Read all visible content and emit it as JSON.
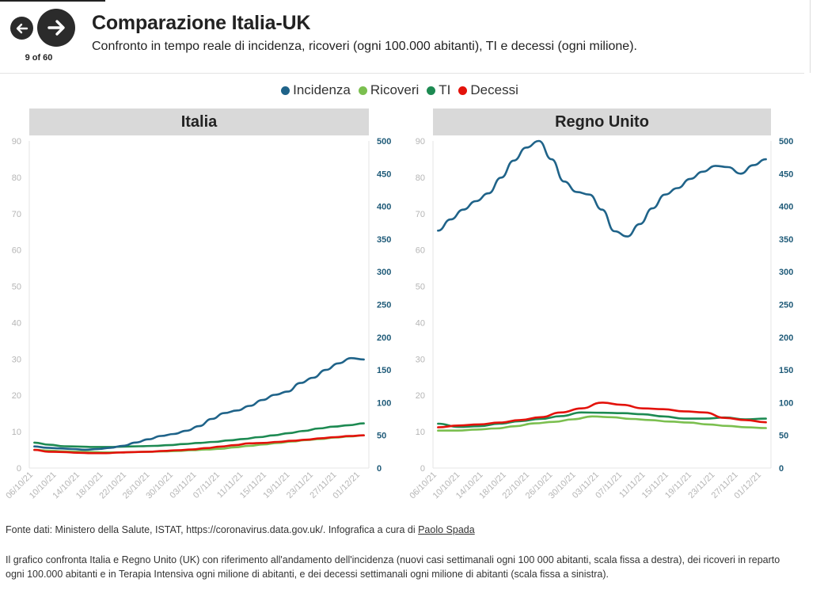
{
  "nav": {
    "counter": "9 of 60",
    "prev_icon": "arrow-left-icon",
    "next_icon": "arrow-right-icon"
  },
  "header": {
    "title": "Comparazione Italia-UK",
    "subtitle": "Confronto in tempo reale di incidenza, ricoveri (ogni 100.000 abitanti), TI e decessi (ogni milione)."
  },
  "legend": [
    {
      "label": "Incidenza",
      "color": "#1f6389"
    },
    {
      "label": "Ricoveri",
      "color": "#7bbf4f"
    },
    {
      "label": "TI",
      "color": "#1d8a52"
    },
    {
      "label": "Decessi",
      "color": "#e3120b"
    }
  ],
  "footer": {
    "source_prefix": "Fonte dati: Ministero della Salute, ISTAT, https://coronavirus.data.gov.uk/. Infografica a cura di ",
    "author": "Paolo Spada",
    "note": "Il grafico confronta Italia e Regno Unito (UK) con riferimento all'andamento dell'incidenza (nuovi casi settimanali ogni 100 000 abitanti, scala fissa a destra), dei ricoveri in reparto ogni 100.000 abitanti e in Terapia Intensiva ogni milione di abitanti, e dei decessi settimanali ogni milione di abitanti (scala fissa a sinistra)."
  },
  "chart_data": [
    {
      "type": "line",
      "title": "Italia",
      "left_axis": {
        "ticks": [
          0,
          10,
          20,
          30,
          40,
          50,
          60,
          70,
          80,
          90
        ],
        "ylim": [
          0,
          90
        ]
      },
      "right_axis": {
        "ticks": [
          0,
          50,
          100,
          150,
          200,
          250,
          300,
          350,
          400,
          450,
          500
        ],
        "ylim": [
          0,
          500
        ]
      },
      "x_tick_labels": [
        "06/10/21",
        "10/10/21",
        "14/10/21",
        "18/10/21",
        "22/10/21",
        "26/10/21",
        "30/10/21",
        "03/11/21",
        "07/11/21",
        "11/11/21",
        "15/11/21",
        "19/11/21",
        "23/11/21",
        "27/11/21",
        "01/12/21"
      ],
      "series": [
        {
          "name": "Incidenza",
          "axis": "right",
          "values": [
            33,
            31,
            30,
            29,
            28,
            29,
            31,
            34,
            39,
            44,
            49,
            52,
            57,
            64,
            75,
            84,
            88,
            95,
            104,
            112,
            117,
            130,
            138,
            150,
            160,
            168,
            166
          ]
        },
        {
          "name": "Ricoveri",
          "axis": "left",
          "values": [
            5.0,
            4.8,
            4.6,
            4.5,
            4.4,
            4.3,
            4.3,
            4.4,
            4.5,
            4.6,
            4.7,
            4.9,
            5.1,
            5.3,
            5.7,
            6.1,
            6.5,
            6.9,
            7.3,
            7.7,
            8.0,
            8.4,
            8.7,
            9.0
          ]
        },
        {
          "name": "TI",
          "axis": "left",
          "values": [
            7.0,
            6.4,
            6.0,
            5.9,
            5.8,
            5.8,
            5.9,
            6.0,
            6.1,
            6.3,
            6.6,
            6.9,
            7.2,
            7.6,
            8.0,
            8.5,
            9.0,
            9.6,
            10.2,
            10.9,
            11.4,
            11.8,
            12.3
          ]
        },
        {
          "name": "Decessi",
          "axis": "left",
          "values": [
            5.0,
            4.5,
            4.4,
            4.2,
            4.1,
            4.1,
            4.3,
            4.4,
            4.5,
            4.7,
            4.9,
            5.1,
            5.5,
            5.9,
            6.3,
            6.8,
            6.9,
            7.2,
            7.5,
            7.8,
            8.2,
            8.5,
            8.8,
            9.0
          ]
        }
      ]
    },
    {
      "type": "line",
      "title": "Regno Unito",
      "left_axis": {
        "ticks": [
          0,
          10,
          20,
          30,
          40,
          50,
          60,
          70,
          80,
          90
        ],
        "ylim": [
          0,
          90
        ]
      },
      "right_axis": {
        "ticks": [
          0,
          50,
          100,
          150,
          200,
          250,
          300,
          350,
          400,
          450,
          500
        ],
        "ylim": [
          0,
          500
        ]
      },
      "x_tick_labels": [
        "06/10/21",
        "10/10/21",
        "14/10/21",
        "18/10/21",
        "22/10/21",
        "26/10/21",
        "30/10/21",
        "03/11/21",
        "07/11/21",
        "11/11/21",
        "15/11/21",
        "19/11/21",
        "23/11/21",
        "27/11/21",
        "01/12/21"
      ],
      "series": [
        {
          "name": "Incidenza",
          "axis": "right",
          "values": [
            363,
            380,
            395,
            408,
            420,
            444,
            470,
            490,
            500,
            472,
            438,
            422,
            418,
            395,
            362,
            354,
            373,
            397,
            418,
            428,
            442,
            453,
            462,
            460,
            450,
            463,
            472
          ]
        },
        {
          "name": "Ricoveri",
          "axis": "left",
          "values": [
            10.3,
            10.3,
            10.6,
            10.9,
            11.5,
            12.3,
            12.7,
            13.4,
            14.2,
            14.0,
            13.5,
            13.2,
            12.8,
            12.5,
            12.0,
            11.6,
            11.2,
            11.0
          ]
        },
        {
          "name": "TI",
          "axis": "left",
          "values": [
            12.2,
            11.3,
            11.5,
            12.2,
            12.9,
            13.5,
            14.3,
            15.3,
            15.2,
            15.1,
            14.8,
            14.2,
            13.6,
            13.6,
            13.9,
            13.4,
            13.6
          ]
        },
        {
          "name": "Decessi",
          "axis": "left",
          "values": [
            11.2,
            11.7,
            12.0,
            12.5,
            13.2,
            14.0,
            15.3,
            16.4,
            18.0,
            17.4,
            16.4,
            16.2,
            15.6,
            15.3,
            13.8,
            13.2,
            12.6
          ]
        }
      ]
    }
  ]
}
